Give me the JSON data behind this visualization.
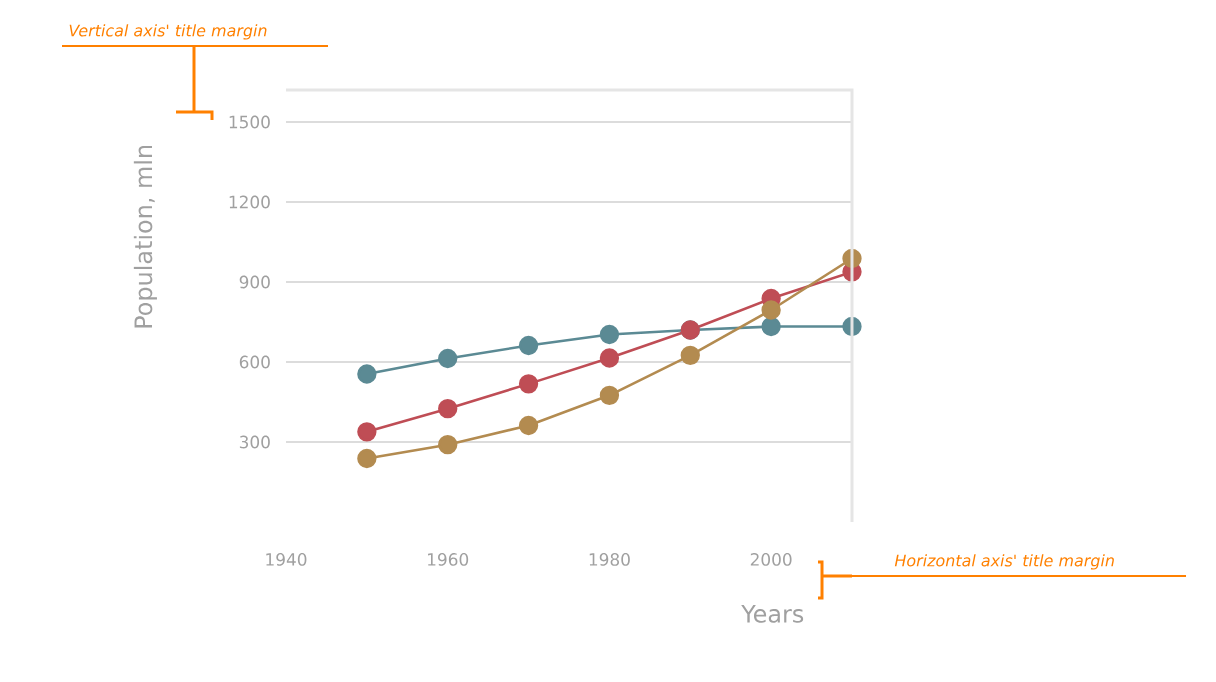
{
  "chart_data": {
    "type": "line",
    "xlabel": "Years",
    "ylabel": "Population, mln",
    "x": [
      1950,
      1960,
      1970,
      1980,
      1990,
      2000,
      2010
    ],
    "series": [
      {
        "color": "#5b8a94",
        "values": [
          555,
          613,
          662,
          703,
          720,
          733,
          733
        ]
      },
      {
        "color": "#bf4d55",
        "values": [
          338,
          425,
          518,
          615,
          720,
          838,
          938
        ]
      },
      {
        "color": "#b38b50",
        "values": [
          238,
          290,
          362,
          475,
          625,
          795,
          988
        ]
      }
    ],
    "xlim": [
      1940,
      2010
    ],
    "ylim": [
      0,
      1620
    ],
    "xticks": [
      1940,
      1960,
      1980,
      2000
    ],
    "yticks": [
      300,
      600,
      900,
      1200,
      1500
    ],
    "grid": "y",
    "marker": "circle",
    "line_style": "solid",
    "annotations": [
      "Vertical axis' title margin",
      "Horizontal axis' title margin"
    ]
  }
}
